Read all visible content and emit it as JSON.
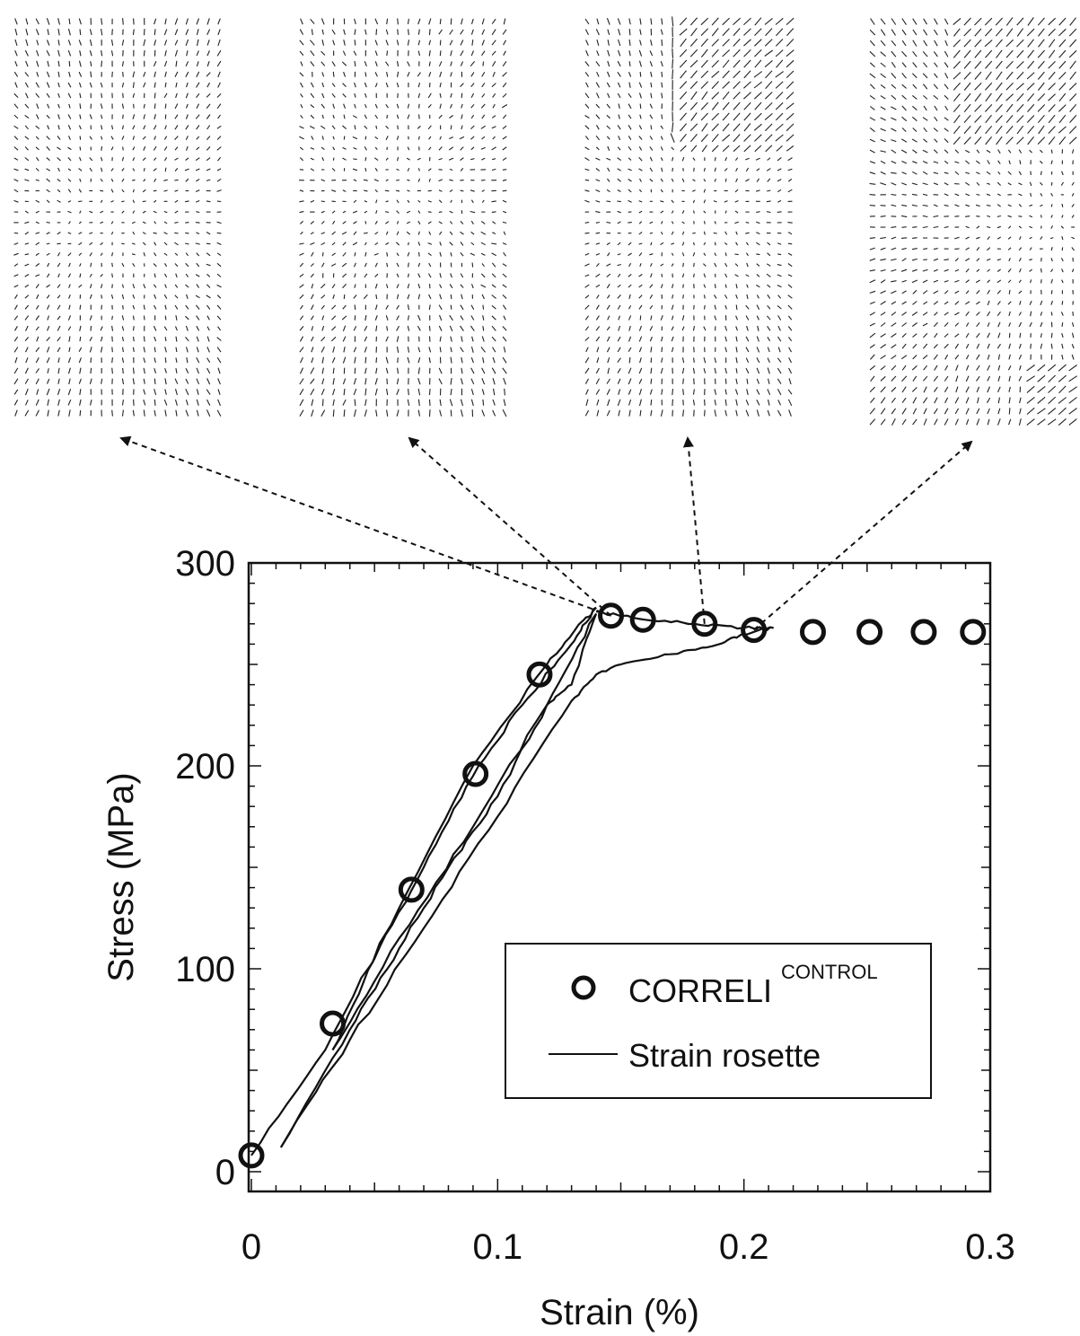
{
  "chart_data": {
    "type": "scatter",
    "xlabel": "Strain (%)",
    "ylabel": "Stress (MPa)",
    "xlim": [
      0,
      0.3
    ],
    "ylim": [
      0,
      300
    ],
    "x_ticks": [
      {
        "value": 0,
        "label": "0"
      },
      {
        "value": 0.1,
        "label": "0.1"
      },
      {
        "value": 0.2,
        "label": "0.2"
      },
      {
        "value": 0.3,
        "label": "0.3"
      }
    ],
    "y_ticks": [
      {
        "value": 0,
        "label": "0"
      },
      {
        "value": 100,
        "label": "100"
      },
      {
        "value": 200,
        "label": "200"
      },
      {
        "value": 300,
        "label": "300"
      }
    ],
    "legend": {
      "placement": "lower-right",
      "entries": [
        {
          "label": "CORRELI",
          "superscript": "CONTROL",
          "marker": "circle"
        },
        {
          "label": "Strain rosette",
          "marker": "line"
        }
      ]
    },
    "series": [
      {
        "name": "CORRELI",
        "type": "scatter",
        "x": [
          0.0,
          0.033,
          0.065,
          0.091,
          0.117,
          0.146,
          0.159,
          0.184,
          0.204,
          0.228,
          0.251,
          0.273,
          0.293
        ],
        "y": [
          8,
          73,
          139,
          196,
          245,
          274,
          272,
          270,
          267,
          266,
          266,
          266,
          266
        ]
      },
      {
        "name": "Strain rosette",
        "type": "line",
        "segments": [
          {
            "x": [
              0.0,
              0.03,
              0.06,
              0.09,
              0.12,
              0.135,
              0.14
            ],
            "y": [
              8,
              60,
              130,
              200,
              250,
              272,
              278
            ]
          },
          {
            "x": [
              0.14,
              0.13,
              0.11,
              0.09,
              0.07,
              0.05,
              0.033
            ],
            "y": [
              278,
              260,
              230,
              195,
              150,
              105,
              60
            ]
          },
          {
            "x": [
              0.033,
              0.06,
              0.09,
              0.12,
              0.14
            ],
            "y": [
              60,
              115,
              170,
              230,
              275
            ]
          },
          {
            "x": [
              0.14,
              0.13,
              0.12,
              0.1,
              0.08,
              0.06,
              0.04,
              0.012
            ],
            "y": [
              275,
              240,
              230,
              185,
              150,
              110,
              70,
              12
            ]
          },
          {
            "x": [
              0.012,
              0.04,
              0.07,
              0.1,
              0.13,
              0.14,
              0.15
            ],
            "y": [
              12,
              65,
              120,
              175,
              232,
              245,
              250
            ]
          },
          {
            "x": [
              0.15,
              0.17,
              0.19,
              0.2,
              0.212
            ],
            "y": [
              250,
              255,
              260,
              265,
              268
            ]
          },
          {
            "x": [
              0.14,
              0.16,
              0.18,
              0.2,
              0.212
            ],
            "y": [
              276,
              272,
              270,
              268,
              268
            ]
          }
        ]
      }
    ],
    "annotations": [
      {
        "type": "dashed-arrow",
        "from_point": 0.146,
        "target_panel": 0
      },
      {
        "type": "dashed-arrow",
        "from_point": 0.146,
        "target_panel": 1
      },
      {
        "type": "dashed-arrow",
        "from_point": 0.184,
        "target_panel": 2
      },
      {
        "type": "dashed-arrow",
        "from_point": 0.204,
        "target_panel": 3
      }
    ]
  },
  "vector_fields": [
    {
      "mode": "uniform"
    },
    {
      "mode": "slight"
    },
    {
      "mode": "shear-top-right"
    },
    {
      "mode": "strong-shear-corner"
    }
  ],
  "colors": {
    "ink": "#111111",
    "background": "#ffffff"
  }
}
